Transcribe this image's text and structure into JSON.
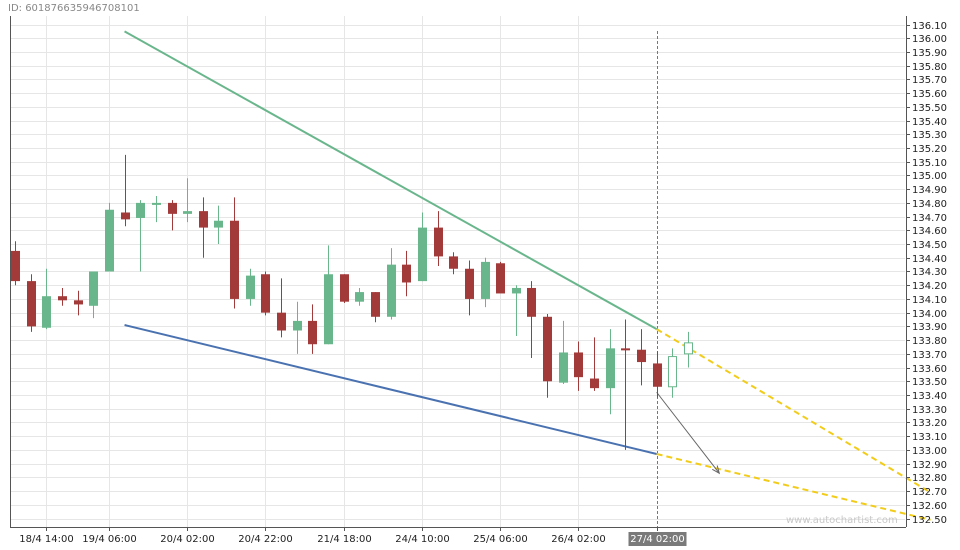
{
  "header": {
    "chart_id": "ID: 601876635946708101"
  },
  "watermark": "www.autochartist.com",
  "colors": {
    "bull": "#6ab68c",
    "bear": "#a33a3a",
    "resistance": "#6ab68c",
    "support": "#4a72b0",
    "projection": "#f2cc1a",
    "arrow": "#666666",
    "grid": "#e6e6e6",
    "highlight_bg": "#7a7a7a"
  },
  "chart_data": {
    "type": "candlestick",
    "title": "",
    "xlabel": "",
    "ylabel": "",
    "ylim": [
      132.45,
      136.12
    ],
    "grid": true,
    "y_ticks": [
      "136.10",
      "136.00",
      "135.90",
      "135.80",
      "135.70",
      "135.60",
      "135.50",
      "135.40",
      "135.30",
      "135.20",
      "135.10",
      "135.00",
      "134.90",
      "134.80",
      "134.70",
      "134.60",
      "134.50",
      "134.40",
      "134.30",
      "134.20",
      "134.10",
      "134.00",
      "133.90",
      "133.80",
      "133.70",
      "133.60",
      "133.50",
      "133.40",
      "133.30",
      "133.20",
      "133.10",
      "133.00",
      "132.90",
      "132.80",
      "132.70",
      "132.60",
      "132.50"
    ],
    "x_ticks": [
      {
        "label": "18/4 14:00",
        "index": 2
      },
      {
        "label": "19/4 06:00",
        "index": 6
      },
      {
        "label": "20/4 02:00",
        "index": 11
      },
      {
        "label": "20/4 22:00",
        "index": 16
      },
      {
        "label": "21/4 18:00",
        "index": 21
      },
      {
        "label": "24/4 10:00",
        "index": 26
      },
      {
        "label": "25/4 06:00",
        "index": 31
      },
      {
        "label": "26/4 02:00",
        "index": 36
      },
      {
        "label": "27/4 02:00",
        "index": 41,
        "highlight": true
      }
    ],
    "series": [
      {
        "o": 134.45,
        "h": 134.52,
        "l": 134.2,
        "c": 134.23
      },
      {
        "o": 134.23,
        "h": 134.28,
        "l": 133.86,
        "c": 133.9
      },
      {
        "o": 133.89,
        "h": 134.32,
        "l": 133.88,
        "c": 134.12
      },
      {
        "o": 134.12,
        "h": 134.18,
        "l": 134.05,
        "c": 134.09
      },
      {
        "o": 134.09,
        "h": 134.16,
        "l": 133.98,
        "c": 134.06
      },
      {
        "o": 134.05,
        "h": 134.3,
        "l": 133.96,
        "c": 134.3
      },
      {
        "o": 134.3,
        "h": 134.8,
        "l": 134.3,
        "c": 134.75
      },
      {
        "o": 134.73,
        "h": 135.15,
        "l": 134.63,
        "c": 134.68
      },
      {
        "o": 134.69,
        "h": 134.82,
        "l": 134.3,
        "c": 134.8
      },
      {
        "o": 134.8,
        "h": 134.85,
        "l": 134.66,
        "c": 134.8
      },
      {
        "o": 134.8,
        "h": 134.82,
        "l": 134.6,
        "c": 134.72
      },
      {
        "o": 134.72,
        "h": 134.98,
        "l": 134.66,
        "c": 134.74
      },
      {
        "o": 134.74,
        "h": 134.84,
        "l": 134.4,
        "c": 134.62
      },
      {
        "o": 134.62,
        "h": 134.78,
        "l": 134.5,
        "c": 134.67
      },
      {
        "o": 134.67,
        "h": 134.84,
        "l": 134.03,
        "c": 134.1
      },
      {
        "o": 134.1,
        "h": 134.32,
        "l": 134.05,
        "c": 134.27
      },
      {
        "o": 134.28,
        "h": 134.3,
        "l": 133.98,
        "c": 134.0
      },
      {
        "o": 134.0,
        "h": 134.25,
        "l": 133.82,
        "c": 133.87
      },
      {
        "o": 133.87,
        "h": 134.08,
        "l": 133.7,
        "c": 133.94
      },
      {
        "o": 133.94,
        "h": 134.06,
        "l": 133.7,
        "c": 133.77
      },
      {
        "o": 133.77,
        "h": 134.49,
        "l": 133.77,
        "c": 134.28
      },
      {
        "o": 134.28,
        "h": 134.28,
        "l": 134.07,
        "c": 134.08
      },
      {
        "o": 134.08,
        "h": 134.18,
        "l": 134.05,
        "c": 134.15
      },
      {
        "o": 134.15,
        "h": 134.15,
        "l": 133.93,
        "c": 133.97
      },
      {
        "o": 133.97,
        "h": 134.47,
        "l": 133.95,
        "c": 134.35
      },
      {
        "o": 134.35,
        "h": 134.45,
        "l": 134.12,
        "c": 134.22
      },
      {
        "o": 134.23,
        "h": 134.73,
        "l": 134.23,
        "c": 134.62
      },
      {
        "o": 134.62,
        "h": 134.74,
        "l": 134.34,
        "c": 134.41
      },
      {
        "o": 134.41,
        "h": 134.44,
        "l": 134.28,
        "c": 134.32
      },
      {
        "o": 134.32,
        "h": 134.38,
        "l": 133.98,
        "c": 134.1
      },
      {
        "o": 134.1,
        "h": 134.4,
        "l": 134.04,
        "c": 134.37
      },
      {
        "o": 134.36,
        "h": 134.37,
        "l": 134.15,
        "c": 134.14
      },
      {
        "o": 134.14,
        "h": 134.2,
        "l": 133.83,
        "c": 134.18
      },
      {
        "o": 134.18,
        "h": 134.23,
        "l": 133.67,
        "c": 133.97
      },
      {
        "o": 133.97,
        "h": 133.99,
        "l": 133.38,
        "c": 133.5
      },
      {
        "o": 133.49,
        "h": 133.94,
        "l": 133.48,
        "c": 133.71
      },
      {
        "o": 133.71,
        "h": 133.79,
        "l": 133.43,
        "c": 133.53
      },
      {
        "o": 133.52,
        "h": 133.82,
        "l": 133.43,
        "c": 133.45
      },
      {
        "o": 133.45,
        "h": 133.88,
        "l": 133.26,
        "c": 133.74
      },
      {
        "o": 133.74,
        "h": 133.95,
        "l": 133.0,
        "c": 133.73
      },
      {
        "o": 133.73,
        "h": 133.88,
        "l": 133.47,
        "c": 133.64
      },
      {
        "o": 133.63,
        "h": 133.72,
        "l": 133.38,
        "c": 133.46
      },
      {
        "o": 133.46,
        "h": 133.74,
        "l": 133.38,
        "c": 133.68
      },
      {
        "o": 133.7,
        "h": 133.86,
        "l": 133.6,
        "c": 133.78
      }
    ],
    "patterns": {
      "resistance": {
        "i1": 7,
        "y1": 136.05,
        "i2": 41,
        "y2": 133.88
      },
      "support": {
        "i1": 7,
        "y1": 133.91,
        "i2": 41,
        "y2": 132.97
      },
      "resistance_projection": {
        "i1": 41,
        "y1": 133.88,
        "i2": 58.5,
        "y2": 132.69
      },
      "support_projection": {
        "i1": 41,
        "y1": 132.97,
        "i2": 58.5,
        "y2": 132.49
      },
      "forecast_arrow": {
        "i1": 41,
        "y1": 133.42,
        "i2": 45,
        "y2": 132.83
      },
      "current_marker_index": 41
    }
  }
}
